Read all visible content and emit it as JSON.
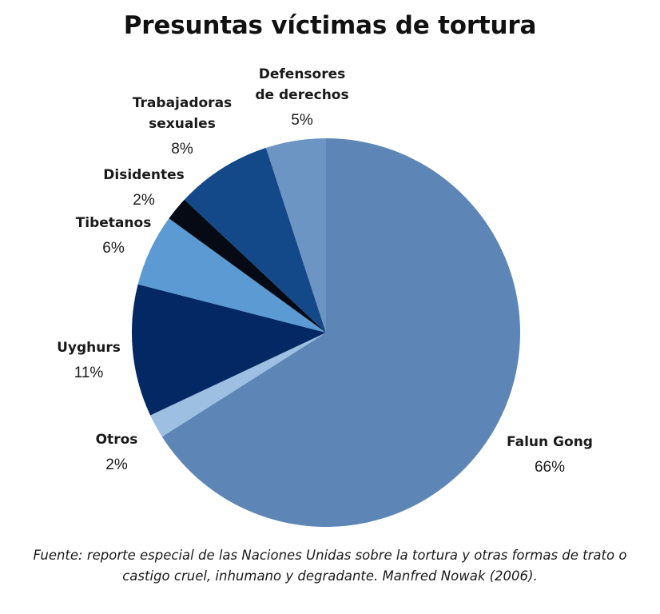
{
  "chart_data": {
    "type": "pie",
    "title": "Presuntas víctimas de tortura",
    "slices": [
      {
        "name": "Falun Gong",
        "name_lines": [
          "Falun Gong"
        ],
        "label": "66%",
        "value": 66,
        "color": "#5d86b6"
      },
      {
        "name": "Otros",
        "name_lines": [
          "Otros"
        ],
        "label": "2%",
        "value": 2,
        "color": "#9dbfe2"
      },
      {
        "name": "Uyghurs",
        "name_lines": [
          "Uyghurs"
        ],
        "label": "11%",
        "value": 11,
        "color": "#032863"
      },
      {
        "name": "Tibetanos",
        "name_lines": [
          "Tibetanos"
        ],
        "label": "6%",
        "value": 6,
        "color": "#5b9ad2"
      },
      {
        "name": "Disidentes",
        "name_lines": [
          "Disidentes"
        ],
        "label": "2%",
        "value": 2,
        "color": "#050a14"
      },
      {
        "name": "Trabajadoras sexuales",
        "name_lines": [
          "Trabajadoras",
          "sexuales"
        ],
        "label": "8%",
        "value": 8,
        "color": "#144989"
      },
      {
        "name": "Defensores de derechos",
        "name_lines": [
          "Defensores",
          "de derechos"
        ],
        "label": "5%",
        "value": 5,
        "color": "#6c95c3"
      }
    ],
    "start": "top",
    "direction": "clockwise"
  },
  "source": "Fuente: reporte especial de las Naciones Unidas sobre la tortura y otras formas de trato o castigo cruel, inhumano y degradante. Manfred Nowak (2006)."
}
